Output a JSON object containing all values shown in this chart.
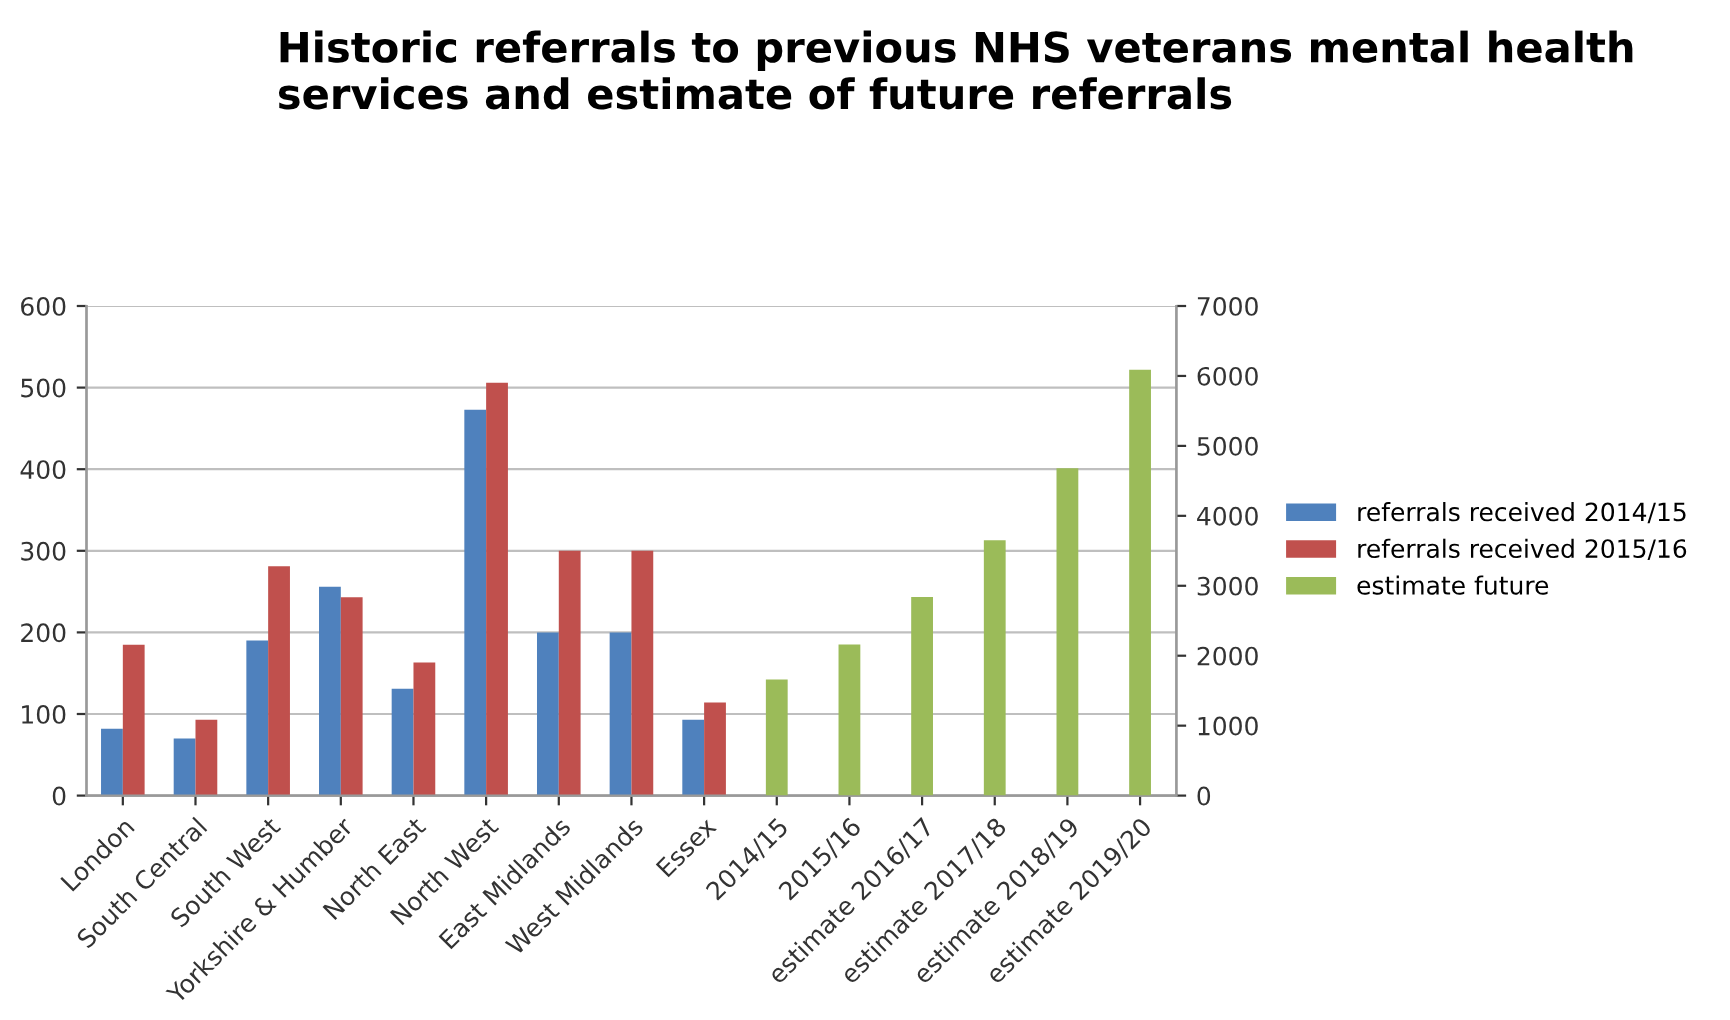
{
  "chart_data": {
    "type": "bar",
    "title": "Historic referrals to previous NHS veterans mental health services and estimate of future referrals",
    "categories": [
      "London",
      "South Central",
      "South West",
      "Yorkshire & Humber",
      "North East",
      "North West",
      "East Midlands",
      "West Midlands",
      "Essex",
      "2014/15",
      "2015/16",
      "estimate 2016/17",
      "estimate 2017/18",
      "estimate 2018/19",
      "estimate 2019/20"
    ],
    "series": [
      {
        "name": "referrals received 2014/15",
        "color": "#4f81bd",
        "values": [
          82,
          70,
          190,
          256,
          131,
          473,
          200,
          200,
          93,
          null,
          null,
          null,
          null,
          null,
          null
        ]
      },
      {
        "name": "referrals received 2015/16",
        "color": "#c0504d",
        "values": [
          185,
          93,
          281,
          243,
          163,
          506,
          300,
          300,
          114,
          null,
          null,
          null,
          null,
          null,
          null
        ]
      },
      {
        "name": "estimate future",
        "color": "#9bbb59",
        "axis": "y2",
        "values": [
          null,
          null,
          null,
          null,
          null,
          null,
          null,
          null,
          null,
          1660,
          2160,
          2840,
          3650,
          4680,
          6090
        ]
      }
    ],
    "ylim": [
      0,
      600
    ],
    "yticks": [
      0,
      100,
      200,
      300,
      400,
      500,
      600
    ],
    "y2lim": [
      0,
      7000
    ],
    "y2ticks": [
      0,
      1000,
      2000,
      3000,
      4000,
      5000,
      6000,
      7000
    ],
    "grid": "y",
    "legend": "right"
  }
}
